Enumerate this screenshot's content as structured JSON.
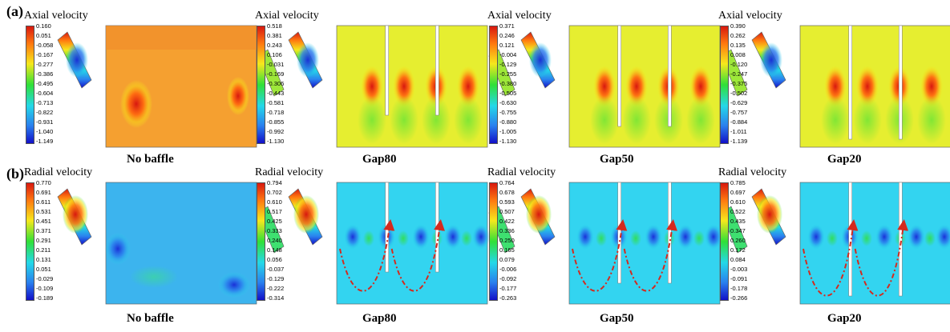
{
  "row_labels": {
    "a": "(a)",
    "b": "(b)"
  },
  "rows": [
    {
      "panels": [
        {
          "title": "Axial velocity",
          "caption": "No baffle",
          "case": "none",
          "ticks": [
            "0.160",
            "0.051",
            "-0.058",
            "-0.167",
            "-0.277",
            "-0.386",
            "-0.495",
            "-0.604",
            "-0.713",
            "-0.822",
            "-0.931",
            "-1.040",
            "-1.149"
          ]
        },
        {
          "title": "Axial velocity",
          "caption": "Gap80",
          "case": "gap80",
          "ticks": [
            "0.518",
            "0.381",
            "0.243",
            "0.106",
            "-0.031",
            "-0.169",
            "-0.306",
            "-0.443",
            "-0.581",
            "-0.718",
            "-0.855",
            "-0.992",
            "-1.130"
          ]
        },
        {
          "title": "Axial velocity",
          "caption": "Gap50",
          "case": "gap50",
          "ticks": [
            "0.371",
            "0.246",
            "0.121",
            "-0.004",
            "-0.129",
            "-0.255",
            "-0.380",
            "-0.505",
            "-0.630",
            "-0.755",
            "-0.880",
            "-1.005",
            "-1.130"
          ]
        },
        {
          "title": "Axial velocity",
          "caption": "Gap20",
          "case": "gap20",
          "ticks": [
            "0.390",
            "0.262",
            "0.135",
            "0.008",
            "-0.120",
            "-0.247",
            "-0.375",
            "-0.502",
            "-0.629",
            "-0.757",
            "-0.884",
            "-1.011",
            "-1.139"
          ]
        }
      ]
    },
    {
      "panels": [
        {
          "title": "Radial velocity",
          "caption": "No baffle",
          "case": "none",
          "ticks": [
            "0.770",
            "0.691",
            "0.611",
            "0.531",
            "0.451",
            "0.371",
            "0.291",
            "0.211",
            "0.131",
            "0.051",
            "-0.029",
            "-0.109",
            "-0.189"
          ]
        },
        {
          "title": "Radial velocity",
          "caption": "Gap80",
          "case": "gap80",
          "ticks": [
            "0.794",
            "0.702",
            "0.610",
            "0.517",
            "0.425",
            "0.333",
            "0.240",
            "0.148",
            "0.056",
            "-0.037",
            "-0.129",
            "-0.222",
            "-0.314"
          ]
        },
        {
          "title": "Radial velocity",
          "caption": "Gap50",
          "case": "gap50",
          "ticks": [
            "0.764",
            "0.678",
            "0.593",
            "0.507",
            "0.422",
            "0.336",
            "0.250",
            "0.165",
            "0.079",
            "-0.006",
            "-0.092",
            "-0.177",
            "-0.263"
          ]
        },
        {
          "title": "Radial velocity",
          "caption": "Gap20",
          "case": "gap20",
          "ticks": [
            "0.785",
            "0.697",
            "0.610",
            "0.522",
            "0.435",
            "0.347",
            "0.260",
            "0.172",
            "0.084",
            "-0.003",
            "-0.091",
            "-0.178",
            "-0.266"
          ]
        }
      ]
    }
  ],
  "colors": {
    "axial_bg_none": "#f5a030",
    "axial_bg_baffle": "#e6ee30",
    "radial_bg": "#33d4f0",
    "radial_bg_none": "#3cb4ee",
    "arrow": "#d42a1e"
  }
}
